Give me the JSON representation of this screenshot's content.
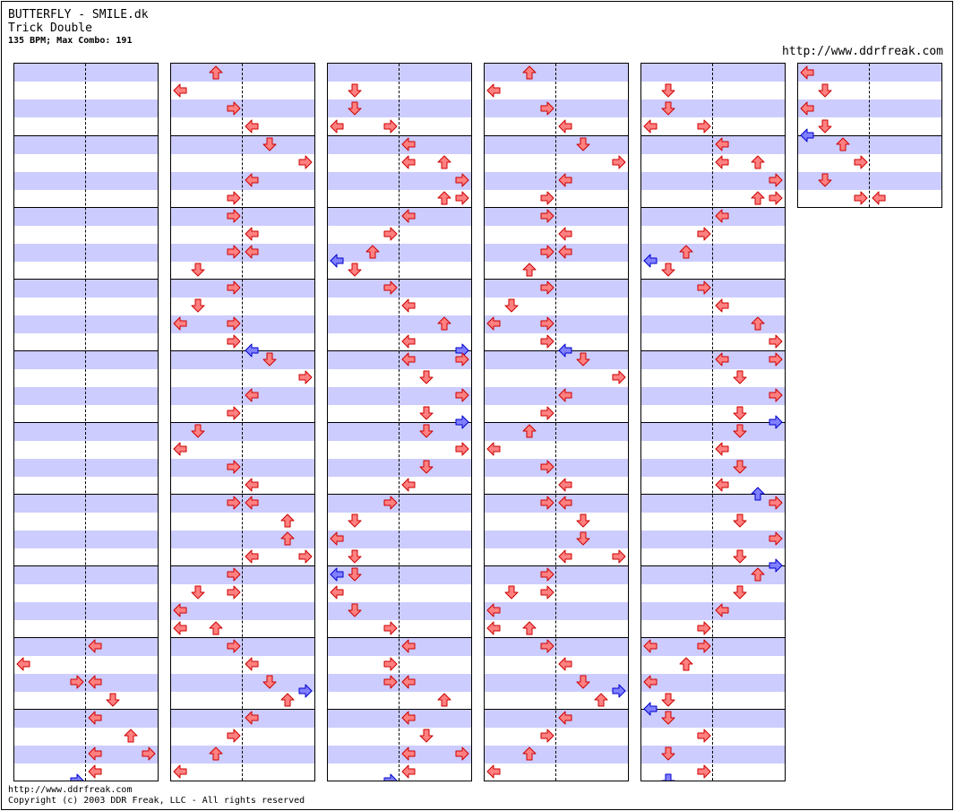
{
  "song": {
    "title": "BUTTERFLY - SMILE.dk",
    "difficulty": "Trick Double",
    "info": "135 BPM; Max Combo: 191"
  },
  "header_link": "http://www.ddrfreak.com",
  "footer": {
    "link": "http://www.ddrfreak.com",
    "copyright": "Copyright (c) 2003 DDR Freak, LLC - All rights reserved"
  },
  "colors": {
    "stripe": "#ccccff",
    "arrow_red_fill": "#ff8080",
    "arrow_red_stroke": "#cc0000",
    "arrow_blue_fill": "#8080ff",
    "arrow_blue_stroke": "#0000cc"
  },
  "lanes": [
    "L",
    "D",
    "U",
    "R",
    "L2",
    "D2",
    "U2",
    "R2"
  ],
  "columns": [
    {
      "measures": 10,
      "notes": [
        [
          32,
          "L2",
          "r"
        ],
        [
          33,
          "L",
          "r"
        ],
        [
          34,
          "R",
          "r"
        ],
        [
          34,
          "L2",
          "r"
        ],
        [
          35,
          "D2",
          "r"
        ],
        [
          36,
          "L2",
          "r"
        ],
        [
          37,
          "U2",
          "r"
        ],
        [
          38,
          "L2",
          "r"
        ],
        [
          38,
          "R2",
          "r"
        ],
        [
          39,
          "L2",
          "r"
        ],
        [
          39.5,
          "R",
          "b"
        ]
      ]
    },
    {
      "measures": 10,
      "notes": [
        [
          0,
          "U",
          "r"
        ],
        [
          1,
          "L",
          "r"
        ],
        [
          2,
          "R",
          "r"
        ],
        [
          3,
          "L2",
          "r"
        ],
        [
          4,
          "D2",
          "r"
        ],
        [
          5,
          "R2",
          "r"
        ],
        [
          6,
          "L2",
          "r"
        ],
        [
          7,
          "R",
          "r"
        ],
        [
          8,
          "R",
          "r"
        ],
        [
          9,
          "L2",
          "r"
        ],
        [
          10,
          "R",
          "r"
        ],
        [
          10,
          "L2",
          "r"
        ],
        [
          11,
          "D",
          "r"
        ],
        [
          12,
          "R",
          "r"
        ],
        [
          13,
          "D",
          "r"
        ],
        [
          14,
          "L",
          "r"
        ],
        [
          14,
          "R",
          "r"
        ],
        [
          15,
          "R",
          "r"
        ],
        [
          15.5,
          "L2",
          "b"
        ],
        [
          16,
          "D2",
          "r"
        ],
        [
          17,
          "R2",
          "r"
        ],
        [
          18,
          "L2",
          "r"
        ],
        [
          19,
          "R",
          "r"
        ],
        [
          20,
          "D",
          "r"
        ],
        [
          21,
          "L",
          "r"
        ],
        [
          22,
          "R",
          "r"
        ],
        [
          23,
          "L2",
          "r"
        ],
        [
          24,
          "R",
          "r"
        ],
        [
          24,
          "L2",
          "r"
        ],
        [
          25,
          "U2",
          "r"
        ],
        [
          26,
          "U2",
          "r"
        ],
        [
          27,
          "L2",
          "r"
        ],
        [
          27,
          "R2",
          "r"
        ],
        [
          28,
          "R",
          "r"
        ],
        [
          29,
          "D",
          "r"
        ],
        [
          29,
          "R",
          "r"
        ],
        [
          30,
          "L",
          "r"
        ],
        [
          31,
          "L",
          "r"
        ],
        [
          31,
          "U",
          "r"
        ],
        [
          32,
          "R",
          "r"
        ],
        [
          33,
          "L2",
          "r"
        ],
        [
          34,
          "D2",
          "r"
        ],
        [
          35,
          "U2",
          "r"
        ],
        [
          34.5,
          "R2",
          "b"
        ],
        [
          36,
          "L2",
          "r"
        ],
        [
          37,
          "R",
          "r"
        ],
        [
          38,
          "U",
          "r"
        ],
        [
          39,
          "L",
          "r"
        ]
      ]
    },
    {
      "measures": 10,
      "notes": [
        [
          1,
          "D",
          "r"
        ],
        [
          2,
          "D",
          "r"
        ],
        [
          3,
          "L",
          "r"
        ],
        [
          3,
          "R",
          "r"
        ],
        [
          4,
          "L2",
          "r"
        ],
        [
          5,
          "L2",
          "r"
        ],
        [
          5,
          "U2",
          "r"
        ],
        [
          6,
          "R2",
          "r"
        ],
        [
          7,
          "U2",
          "r"
        ],
        [
          7,
          "R2",
          "r"
        ],
        [
          8,
          "L2",
          "r"
        ],
        [
          9,
          "R",
          "r"
        ],
        [
          10,
          "U",
          "r"
        ],
        [
          10.5,
          "L",
          "b"
        ],
        [
          11,
          "D",
          "r"
        ],
        [
          12,
          "R",
          "r"
        ],
        [
          13,
          "L2",
          "r"
        ],
        [
          14,
          "U2",
          "r"
        ],
        [
          15,
          "L2",
          "r"
        ],
        [
          15.5,
          "R2",
          "b"
        ],
        [
          16,
          "L2",
          "r"
        ],
        [
          16,
          "R2",
          "r"
        ],
        [
          17,
          "D2",
          "r"
        ],
        [
          18,
          "R2",
          "r"
        ],
        [
          19,
          "D2",
          "r"
        ],
        [
          19.5,
          "R2",
          "b"
        ],
        [
          20,
          "D2",
          "r"
        ],
        [
          21,
          "R2",
          "r"
        ],
        [
          22,
          "D2",
          "r"
        ],
        [
          23,
          "L2",
          "r"
        ],
        [
          24,
          "R",
          "r"
        ],
        [
          25,
          "D",
          "r"
        ],
        [
          26,
          "L",
          "r"
        ],
        [
          27,
          "D",
          "r"
        ],
        [
          28,
          "L",
          "b"
        ],
        [
          28,
          "D",
          "r"
        ],
        [
          29,
          "L",
          "r"
        ],
        [
          30,
          "D",
          "r"
        ],
        [
          31,
          "R",
          "r"
        ],
        [
          32,
          "L2",
          "r"
        ],
        [
          33,
          "R",
          "r"
        ],
        [
          34,
          "R",
          "r"
        ],
        [
          34,
          "L2",
          "r"
        ],
        [
          35,
          "U2",
          "r"
        ],
        [
          36,
          "L2",
          "r"
        ],
        [
          37,
          "D2",
          "r"
        ],
        [
          38,
          "L2",
          "r"
        ],
        [
          38,
          "R2",
          "r"
        ],
        [
          39,
          "L2",
          "r"
        ],
        [
          39.5,
          "R",
          "b"
        ]
      ]
    },
    {
      "measures": 10,
      "notes": [
        [
          0,
          "U",
          "r"
        ],
        [
          1,
          "L",
          "r"
        ],
        [
          2,
          "R",
          "r"
        ],
        [
          3,
          "L2",
          "r"
        ],
        [
          4,
          "D2",
          "r"
        ],
        [
          5,
          "R2",
          "r"
        ],
        [
          6,
          "L2",
          "r"
        ],
        [
          7,
          "R",
          "r"
        ],
        [
          8,
          "R",
          "r"
        ],
        [
          9,
          "L2",
          "r"
        ],
        [
          10,
          "R",
          "r"
        ],
        [
          10,
          "L2",
          "r"
        ],
        [
          11,
          "U",
          "r"
        ],
        [
          12,
          "R",
          "r"
        ],
        [
          13,
          "D",
          "r"
        ],
        [
          14,
          "L",
          "r"
        ],
        [
          14,
          "R",
          "r"
        ],
        [
          15,
          "R",
          "r"
        ],
        [
          15.5,
          "L2",
          "b"
        ],
        [
          16,
          "D2",
          "r"
        ],
        [
          17,
          "R2",
          "r"
        ],
        [
          18,
          "L2",
          "r"
        ],
        [
          19,
          "R",
          "r"
        ],
        [
          20,
          "U",
          "r"
        ],
        [
          21,
          "L",
          "r"
        ],
        [
          22,
          "R",
          "r"
        ],
        [
          23,
          "L2",
          "r"
        ],
        [
          24,
          "R",
          "r"
        ],
        [
          24,
          "L2",
          "r"
        ],
        [
          25,
          "D2",
          "r"
        ],
        [
          26,
          "D2",
          "r"
        ],
        [
          27,
          "L2",
          "r"
        ],
        [
          27,
          "R2",
          "r"
        ],
        [
          28,
          "R",
          "r"
        ],
        [
          29,
          "D",
          "r"
        ],
        [
          29,
          "R",
          "r"
        ],
        [
          30,
          "L",
          "r"
        ],
        [
          31,
          "L",
          "r"
        ],
        [
          31,
          "U",
          "r"
        ],
        [
          32,
          "R",
          "r"
        ],
        [
          33,
          "L2",
          "r"
        ],
        [
          34,
          "D2",
          "r"
        ],
        [
          35,
          "U2",
          "r"
        ],
        [
          34.5,
          "R2",
          "b"
        ],
        [
          36,
          "L2",
          "r"
        ],
        [
          37,
          "R",
          "r"
        ],
        [
          38,
          "U",
          "r"
        ],
        [
          39,
          "L",
          "r"
        ]
      ]
    },
    {
      "measures": 10,
      "notes": [
        [
          1,
          "D",
          "r"
        ],
        [
          2,
          "D",
          "r"
        ],
        [
          3,
          "L",
          "r"
        ],
        [
          3,
          "R",
          "r"
        ],
        [
          4,
          "L2",
          "r"
        ],
        [
          5,
          "L2",
          "r"
        ],
        [
          5,
          "U2",
          "r"
        ],
        [
          6,
          "R2",
          "r"
        ],
        [
          7,
          "U2",
          "r"
        ],
        [
          7,
          "R2",
          "r"
        ],
        [
          8,
          "L2",
          "r"
        ],
        [
          9,
          "R",
          "r"
        ],
        [
          10,
          "U",
          "r"
        ],
        [
          10.5,
          "L",
          "b"
        ],
        [
          11,
          "D",
          "r"
        ],
        [
          12,
          "R",
          "r"
        ],
        [
          13,
          "L2",
          "r"
        ],
        [
          14,
          "U2",
          "r"
        ],
        [
          15,
          "R2",
          "r"
        ],
        [
          16,
          "L2",
          "r"
        ],
        [
          16,
          "R2",
          "r"
        ],
        [
          17,
          "D2",
          "r"
        ],
        [
          18,
          "R2",
          "r"
        ],
        [
          19,
          "D2",
          "r"
        ],
        [
          19.5,
          "R2",
          "b"
        ],
        [
          20,
          "D2",
          "r"
        ],
        [
          21,
          "L2",
          "r"
        ],
        [
          22,
          "D2",
          "r"
        ],
        [
          23,
          "L2",
          "r"
        ],
        [
          23.5,
          "U2",
          "b"
        ],
        [
          24,
          "R2",
          "r"
        ],
        [
          25,
          "D2",
          "r"
        ],
        [
          26,
          "R2",
          "r"
        ],
        [
          27,
          "D2",
          "r"
        ],
        [
          27.5,
          "R2",
          "b"
        ],
        [
          28,
          "U2",
          "r"
        ],
        [
          29,
          "D2",
          "r"
        ],
        [
          30,
          "L2",
          "r"
        ],
        [
          31,
          "R",
          "r"
        ],
        [
          32,
          "L",
          "r"
        ],
        [
          32,
          "R",
          "r"
        ],
        [
          33,
          "U",
          "r"
        ],
        [
          34,
          "L",
          "r"
        ],
        [
          35,
          "D",
          "r"
        ],
        [
          35.5,
          "L",
          "b"
        ],
        [
          36,
          "D",
          "r"
        ],
        [
          37,
          "R",
          "r"
        ],
        [
          38,
          "D",
          "r"
        ],
        [
          39,
          "R",
          "r"
        ],
        [
          39.5,
          "D",
          "b"
        ]
      ]
    },
    {
      "measures": 2,
      "notes": [
        [
          0,
          "L",
          "r"
        ],
        [
          1,
          "D",
          "r"
        ],
        [
          2,
          "L",
          "r"
        ],
        [
          3,
          "D",
          "r"
        ],
        [
          3.5,
          "L",
          "b"
        ],
        [
          4,
          "U",
          "r"
        ],
        [
          5,
          "R",
          "r"
        ],
        [
          6,
          "D",
          "r"
        ],
        [
          7,
          "R",
          "r"
        ],
        [
          7,
          "L2",
          "r"
        ]
      ]
    }
  ]
}
